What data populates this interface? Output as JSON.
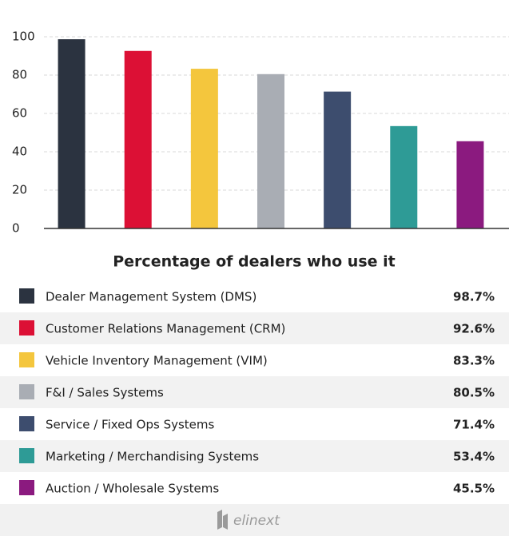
{
  "chart_data": {
    "type": "bar",
    "title": "Percentage of dealers who use it",
    "categories": [
      "Dealer Management System (DMS)",
      "Customer Relations Management (CRM)",
      "Vehicle Inventory Management (VIM)",
      "F&I / Sales Systems",
      "Service / Fixed Ops Systems",
      "Marketing / Merchandising Systems",
      "Auction / Wholesale Systems"
    ],
    "values": [
      98.7,
      92.6,
      83.3,
      80.5,
      71.4,
      53.4,
      45.5
    ],
    "value_labels": [
      "98.7%",
      "92.6%",
      "83.3%",
      "80.5%",
      "71.4%",
      "53.4%",
      "45.5%"
    ],
    "colors": [
      "#2b3340",
      "#dc1035",
      "#f4c63d",
      "#a9adb4",
      "#3d4d6e",
      "#2e9b96",
      "#8b1a7f"
    ],
    "ylim": [
      0,
      100
    ],
    "yticks": [
      0,
      20,
      40,
      60,
      80,
      100
    ],
    "grid": true
  },
  "footer": {
    "logo": "elinext"
  }
}
